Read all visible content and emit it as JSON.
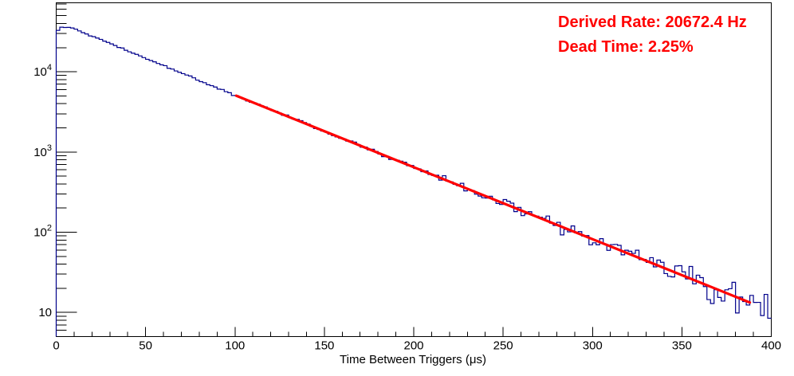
{
  "annotations": {
    "derived_rate": "Derived Rate: 20672.4 Hz",
    "dead_time": "Dead Time: 2.25%",
    "text_color": "#ff0000"
  },
  "chart_data": {
    "type": "histogram",
    "title": "",
    "xlabel": "Time Between Triggers (μs)",
    "ylabel": "",
    "x_range": [
      0,
      400
    ],
    "x_major_tick_step": 50,
    "x_minor_tick_step": 10,
    "x_tick_labels": [
      "0",
      "50",
      "100",
      "150",
      "200",
      "250",
      "300",
      "350",
      "400"
    ],
    "y_scale": "log",
    "y_range": [
      5,
      72000
    ],
    "y_tick_labels": [
      {
        "value": 10,
        "base": "10",
        "exp": ""
      },
      {
        "value": 100,
        "base": "10",
        "exp": "2"
      },
      {
        "value": 1000,
        "base": "10",
        "exp": "3"
      },
      {
        "value": 10000,
        "base": "10",
        "exp": "4"
      }
    ],
    "grid": false,
    "legend": "none",
    "frame_color": "#000000",
    "background_color": "#ffffff",
    "series": [
      {
        "name": "time-between-triggers-histogram",
        "type": "step-histogram",
        "color": "#00008b",
        "line_width": 1.2,
        "bin_width_us": 2,
        "model": {
          "first_bin_value": 33000,
          "plateau_value": 36000,
          "plateau_start_us": 2,
          "plateau_end_us": 8,
          "tau_early_us": 47.1,
          "tau_us": 48.4,
          "value_at_100us": 5030,
          "noise": "poisson",
          "seed": 42
        }
      },
      {
        "name": "exponential-fit",
        "type": "line",
        "color": "#ff0000",
        "line_width": 3.2,
        "x_start_us": 100.7,
        "x_end_us": 388,
        "y_start": 5030,
        "y_end": 13.3
      }
    ],
    "sampled_points": {
      "t_us": [
        0,
        10,
        25,
        50,
        75,
        100,
        125,
        150,
        175,
        200,
        225,
        250,
        275,
        300,
        325,
        350,
        375,
        400
      ],
      "counts": [
        33000,
        34500,
        25100,
        14800,
        8700,
        5100,
        3040,
        1820,
        1090,
        650,
        388,
        232,
        139,
        83,
        50,
        30,
        18,
        11
      ]
    }
  }
}
